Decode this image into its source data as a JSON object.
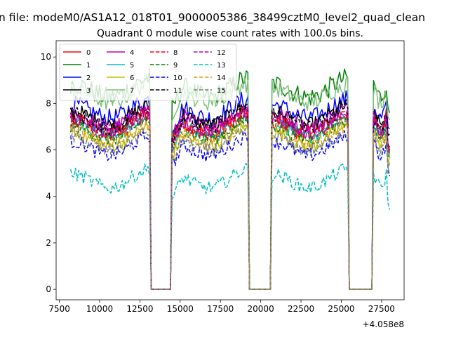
{
  "chart_data": {
    "type": "line",
    "suptitle": "n file: modeM0/AS1A12_018T01_9000005386_38499cztM0_level2_quad_clean",
    "title": "Quadrant 0 module wise count rates with 100.0s bins.",
    "xlabel": "",
    "ylabel": "",
    "offset_text": "+4.058e8",
    "xlim": [
      7300,
      28900
    ],
    "ylim": [
      -0.45,
      10.7
    ],
    "xticks": [
      7500,
      10000,
      12500,
      15000,
      17500,
      20000,
      22500,
      25000,
      27500
    ],
    "xtick_labels": [
      "7500",
      "10000",
      "12500",
      "15000",
      "17500",
      "20000",
      "22500",
      "25000",
      "27500"
    ],
    "yticks": [
      0,
      2,
      4,
      6,
      8,
      10
    ],
    "ytick_labels": [
      "0",
      "2",
      "4",
      "6",
      "8",
      "10"
    ],
    "x_start": 8200,
    "x_end": 28000,
    "bin_size": 100,
    "gaps": [
      [
        13200,
        14400
      ],
      [
        19300,
        20600
      ],
      [
        25500,
        26900
      ]
    ],
    "legend": {
      "placement": "upper-left",
      "ncol": 4
    },
    "series": [
      {
        "name": "0",
        "color": "#ff0000",
        "dash": "solid",
        "level": 7.0,
        "amp": 0.35
      },
      {
        "name": "1",
        "color": "#008000",
        "dash": "solid",
        "level": 8.5,
        "amp": 0.45
      },
      {
        "name": "2",
        "color": "#0000ff",
        "dash": "solid",
        "level": 7.6,
        "amp": 0.4
      },
      {
        "name": "3",
        "color": "#000000",
        "dash": "solid",
        "level": 7.3,
        "amp": 0.35
      },
      {
        "name": "4",
        "color": "#bf00bf",
        "dash": "solid",
        "level": 7.2,
        "amp": 0.35
      },
      {
        "name": "5",
        "color": "#00bfbf",
        "dash": "solid",
        "level": 6.8,
        "amp": 0.3
      },
      {
        "name": "6",
        "color": "#bfbf00",
        "dash": "solid",
        "level": 6.4,
        "amp": 0.3
      },
      {
        "name": "7",
        "color": "#7fbf7f",
        "dash": "solid",
        "level": 8.3,
        "amp": 0.4
      },
      {
        "name": "8",
        "color": "#ff0000",
        "dash": "dashed",
        "level": 6.9,
        "amp": 0.35
      },
      {
        "name": "9",
        "color": "#008000",
        "dash": "dashed",
        "level": 6.7,
        "amp": 0.3
      },
      {
        "name": "10",
        "color": "#0000ff",
        "dash": "dashed",
        "level": 6.0,
        "amp": 0.3
      },
      {
        "name": "11",
        "color": "#000000",
        "dash": "dashed",
        "level": 7.2,
        "amp": 0.35
      },
      {
        "name": "12",
        "color": "#bf00bf",
        "dash": "dashed",
        "level": 7.0,
        "amp": 0.35
      },
      {
        "name": "13",
        "color": "#00bfbf",
        "dash": "dashed",
        "level": 4.6,
        "amp": 0.3
      },
      {
        "name": "14",
        "color": "#d4a017",
        "dash": "dashed",
        "level": 6.5,
        "amp": 0.3
      },
      {
        "name": "15",
        "color": "#808080",
        "dash": "dashed",
        "level": 6.2,
        "amp": 0.3
      }
    ]
  }
}
